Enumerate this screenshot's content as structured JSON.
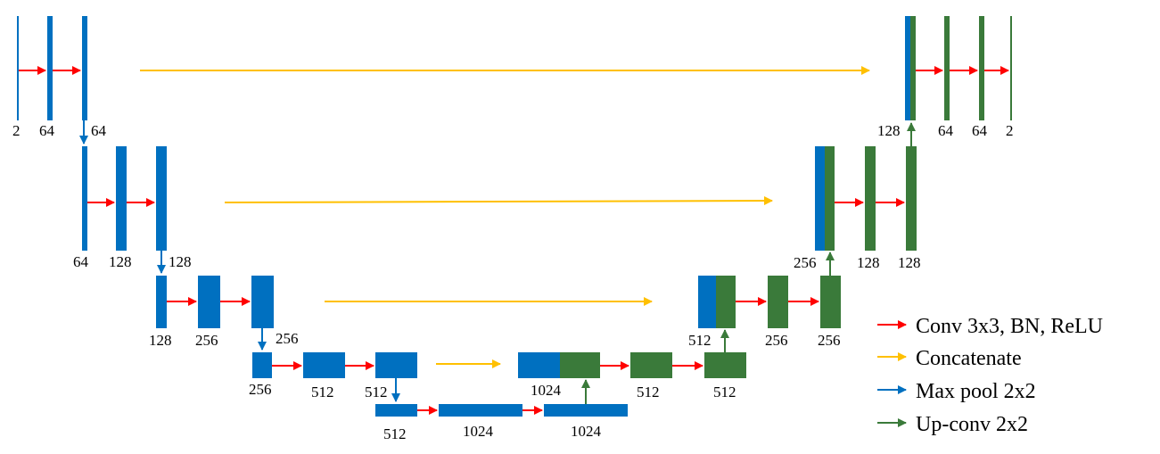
{
  "colors": {
    "blue": "#0070c0",
    "green": "#3a7a3a",
    "red": "#ff0000",
    "yellow": "#ffc000"
  },
  "legend": {
    "conv": "Conv 3x3, BN, ReLU",
    "concat": "Concatenate",
    "pool": "Max pool 2x2",
    "upconv": "Up-conv 2x2"
  },
  "labels": {
    "l1_in": "2",
    "l1_c1": "64",
    "l1_c2": "64",
    "l2_in": "64",
    "l2_c1": "128",
    "l2_c2": "128",
    "l3_in": "128",
    "l3_c1": "256",
    "l3_c2": "256",
    "l4_in": "256",
    "l4_c1": "512",
    "l4_c2": "512",
    "l5_in": "512",
    "l5_c1": "1024",
    "l5_c2": "1024",
    "d4_cat": "1024",
    "d4_c1": "512",
    "d4_c2": "512",
    "d3_cat": "512",
    "d3_c1": "256",
    "d3_c2": "256",
    "d2_cat": "256",
    "d2_c1": "128",
    "d2_c2": "128",
    "d1_cat": "128",
    "d1_c1": "64",
    "d1_c2": "64",
    "d1_out": "2"
  }
}
